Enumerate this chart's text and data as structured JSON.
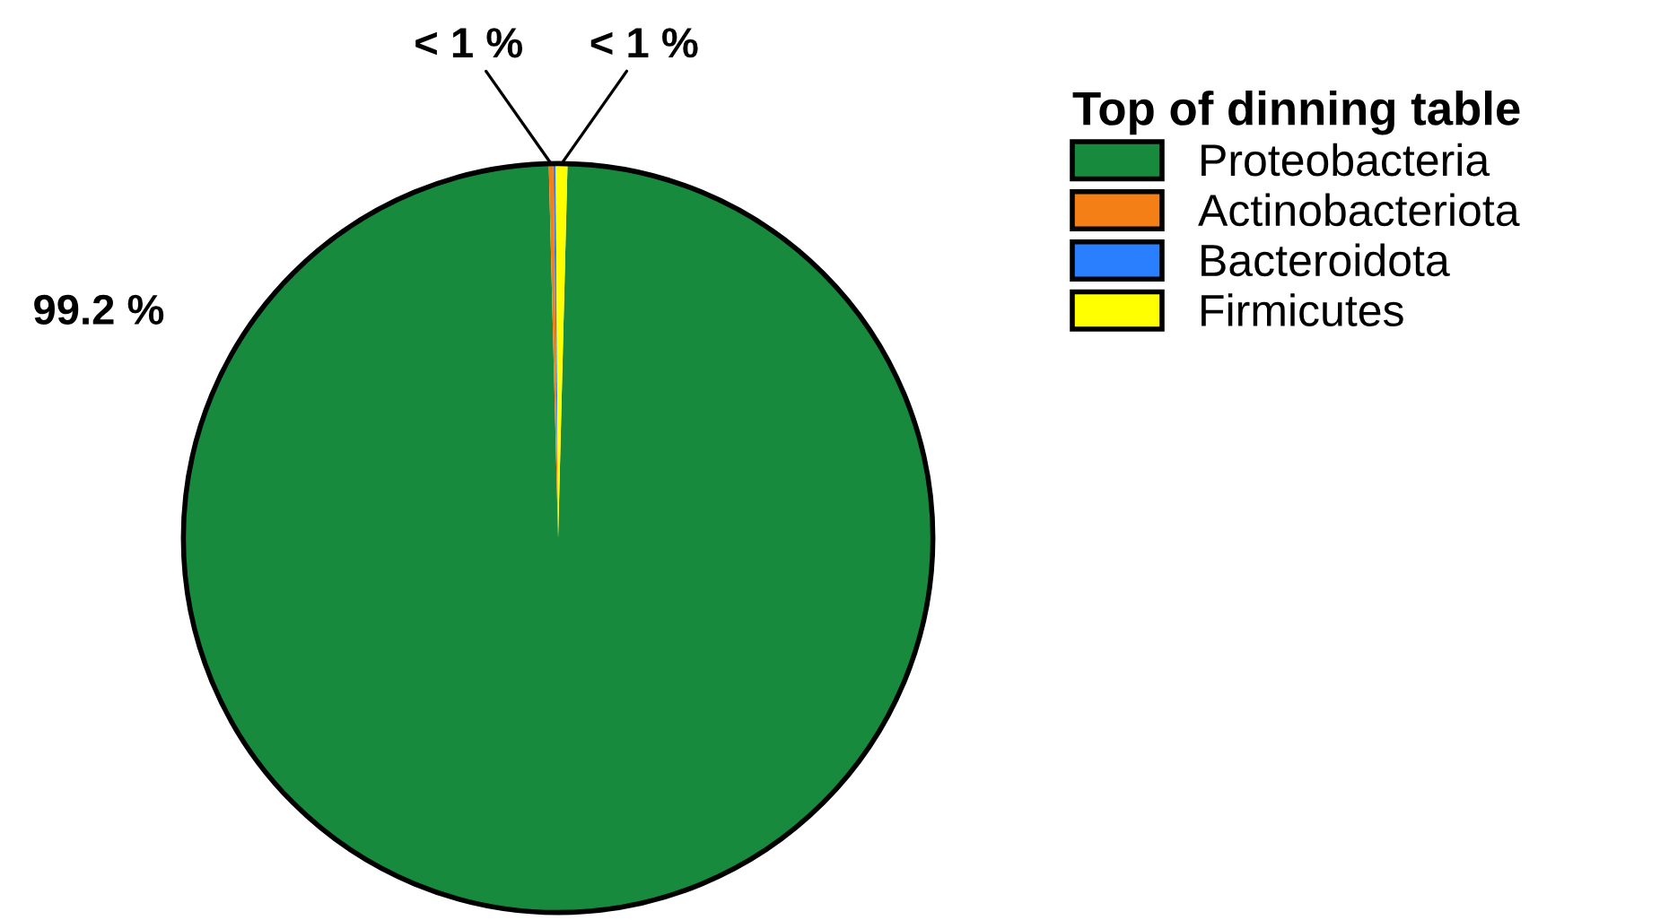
{
  "chart_data": {
    "type": "pie",
    "legend_title": "Top of dinning table",
    "categories": [
      "Proteobacteria",
      "Actinobacteriota",
      "Bacteroidota",
      "Firmicutes"
    ],
    "values": [
      99.2,
      0.2,
      0.1,
      0.5
    ],
    "colors": [
      "#178a3d",
      "#f57f17",
      "#2a7fff",
      "#ffff00"
    ],
    "value_labels": [
      "99.2 %",
      "< 1 %",
      null,
      "< 1 %"
    ],
    "legend": "right"
  }
}
